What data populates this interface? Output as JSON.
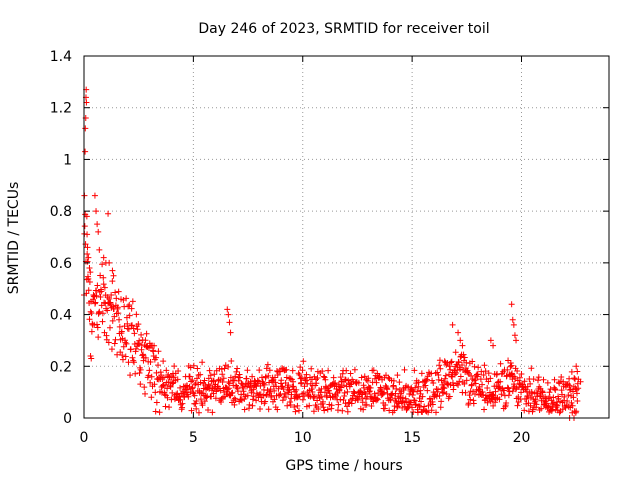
{
  "chart_data": {
    "type": "scatter",
    "title": "Day 246 of 2023, SRMTID for receiver toil",
    "xlabel": "GPS time / hours",
    "ylabel": "SRMTID / TECUs",
    "xlim": [
      0,
      24
    ],
    "ylim": [
      0,
      1.4
    ],
    "xticks": [
      0,
      5,
      10,
      15,
      20
    ],
    "xtick_labels": [
      "0",
      "5",
      "10",
      "15",
      "20"
    ],
    "yticks": [
      0,
      0.2,
      0.4,
      0.6,
      0.8,
      1.0,
      1.2,
      1.4
    ],
    "ytick_labels": [
      "0",
      "0.2",
      "0.4",
      "0.6",
      "0.8",
      "1",
      "1.2",
      "1.4"
    ],
    "grid": true,
    "marker": "+",
    "series": [
      {
        "name": "SRMTID",
        "color": "#ff0000",
        "profile_x": [
          0,
          0.05,
          0.1,
          0.2,
          0.4,
          0.6,
          0.8,
          1.0,
          1.2,
          1.5,
          1.8,
          2.0,
          2.3,
          2.6,
          2.9,
          3.2,
          3.5,
          4.0,
          5.0,
          6.0,
          6.5,
          7.0,
          8.0,
          9.0,
          10.0,
          11.0,
          12.0,
          13.0,
          14.0,
          15.0,
          16.0,
          16.5,
          17.0,
          17.5,
          18.0,
          18.5,
          19.0,
          19.5,
          20.0,
          20.5,
          21.0,
          22.0,
          22.6
        ],
        "profile_y": [
          0.5,
          0.8,
          0.6,
          0.45,
          0.4,
          0.42,
          0.45,
          0.45,
          0.42,
          0.38,
          0.34,
          0.32,
          0.28,
          0.25,
          0.22,
          0.17,
          0.14,
          0.11,
          0.11,
          0.12,
          0.14,
          0.11,
          0.11,
          0.12,
          0.12,
          0.11,
          0.1,
          0.11,
          0.1,
          0.09,
          0.1,
          0.16,
          0.18,
          0.15,
          0.11,
          0.11,
          0.12,
          0.14,
          0.1,
          0.09,
          0.09,
          0.08,
          0.1
        ],
        "spread": 0.07,
        "points": [
          [
            0.02,
            0.86
          ],
          [
            0.05,
            1.03
          ],
          [
            0.06,
            1.12
          ],
          [
            0.08,
            1.16
          ],
          [
            0.09,
            1.24
          ],
          [
            0.1,
            1.27
          ],
          [
            0.11,
            1.22
          ],
          [
            0.13,
            0.78
          ],
          [
            0.14,
            0.71
          ],
          [
            0.16,
            0.66
          ],
          [
            0.2,
            0.62
          ],
          [
            0.25,
            0.58
          ],
          [
            0.3,
            0.24
          ],
          [
            0.33,
            0.23
          ],
          [
            0.5,
            0.86
          ],
          [
            0.55,
            0.8
          ],
          [
            0.6,
            0.75
          ],
          [
            0.65,
            0.72
          ],
          [
            0.7,
            0.65
          ],
          [
            0.9,
            0.62
          ],
          [
            1.0,
            0.6
          ],
          [
            1.1,
            0.79
          ],
          [
            1.15,
            0.6
          ],
          [
            1.3,
            0.57
          ],
          [
            1.35,
            0.55
          ],
          [
            6.55,
            0.42
          ],
          [
            6.6,
            0.4
          ],
          [
            6.65,
            0.37
          ],
          [
            6.7,
            0.33
          ],
          [
            16.85,
            0.36
          ],
          [
            17.1,
            0.33
          ],
          [
            17.2,
            0.3
          ],
          [
            17.3,
            0.28
          ],
          [
            18.6,
            0.3
          ],
          [
            18.7,
            0.28
          ],
          [
            19.55,
            0.44
          ],
          [
            19.6,
            0.38
          ],
          [
            19.65,
            0.36
          ],
          [
            19.7,
            0.32
          ],
          [
            19.75,
            0.3
          ],
          [
            22.5,
            0.2
          ],
          [
            22.55,
            0.18
          ],
          [
            22.6,
            0.15
          ],
          [
            22.7,
            0.14
          ],
          [
            22.2,
            0.0
          ],
          [
            22.4,
            0.0
          ]
        ]
      }
    ]
  }
}
